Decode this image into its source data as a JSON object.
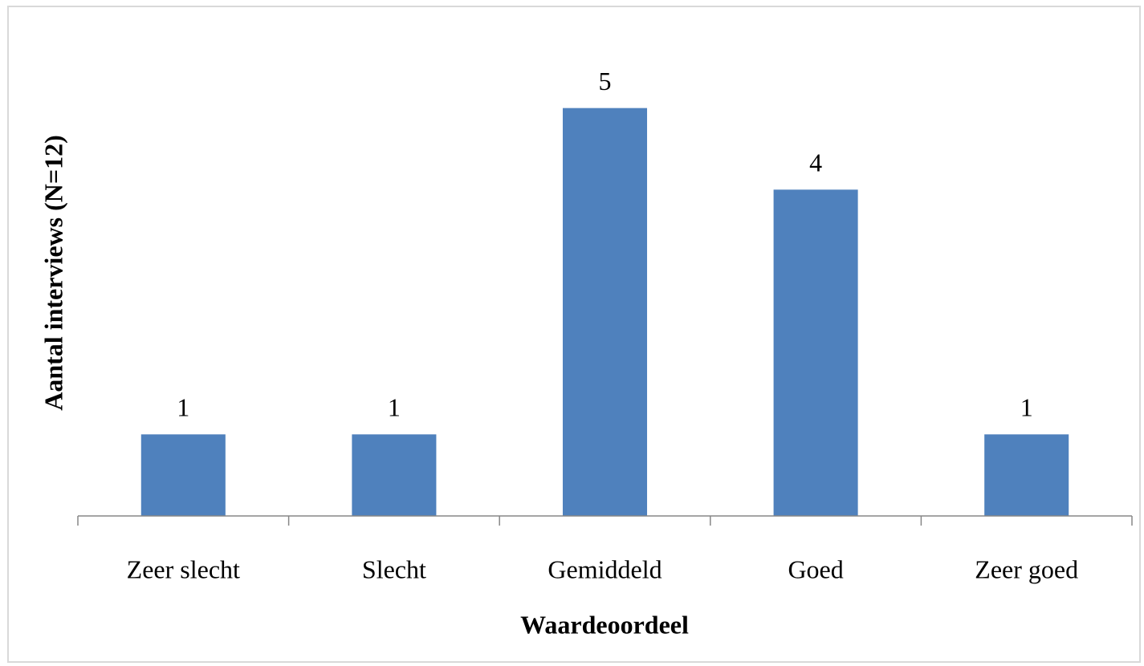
{
  "chart_data": {
    "type": "bar",
    "xlabel": "Waardeoordeel",
    "ylabel": "Aantal interviews (N=12)",
    "categories": [
      "Zeer slecht",
      "Slecht",
      "Gemiddeld",
      "Goed",
      "Zeer goed"
    ],
    "values": [
      1,
      1,
      5,
      4,
      1
    ],
    "color": "#4f81bd",
    "ylim": [
      0,
      6
    ],
    "data_labels": true
  }
}
